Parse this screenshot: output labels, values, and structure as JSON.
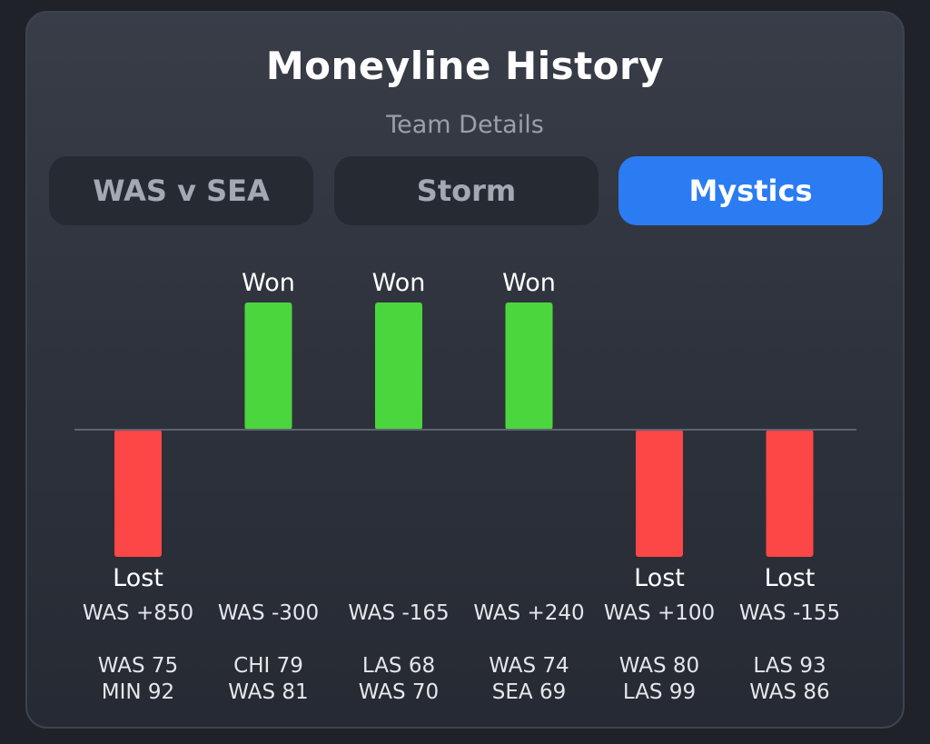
{
  "header": {
    "title": "Moneyline History",
    "subtitle": "Team Details"
  },
  "tabs": [
    {
      "label": "WAS v SEA",
      "active": false
    },
    {
      "label": "Storm",
      "active": false
    },
    {
      "label": "Mystics",
      "active": true
    }
  ],
  "colors": {
    "won": "#4cd63d",
    "lost": "#fd4646",
    "active_tab": "#2b7cf3",
    "baseline": "#5c6373"
  },
  "chart_data": {
    "type": "bar",
    "categories": [
      "WAS +850",
      "WAS -300",
      "WAS -165",
      "WAS +240",
      "WAS +100",
      "WAS -155"
    ],
    "values": [
      -1,
      1,
      1,
      1,
      -1,
      -1
    ],
    "results": [
      "Lost",
      "Won",
      "Won",
      "Won",
      "Lost",
      "Lost"
    ],
    "scores": [
      [
        "WAS 75",
        "MIN 92"
      ],
      [
        "CHI 79",
        "WAS 81"
      ],
      [
        "LAS 68",
        "WAS 70"
      ],
      [
        "WAS 74",
        "SEA 69"
      ],
      [
        "WAS 80",
        "LAS 99"
      ],
      [
        "LAS 93",
        "WAS 86"
      ]
    ],
    "ylim": [
      -1,
      1
    ],
    "grid": false
  }
}
